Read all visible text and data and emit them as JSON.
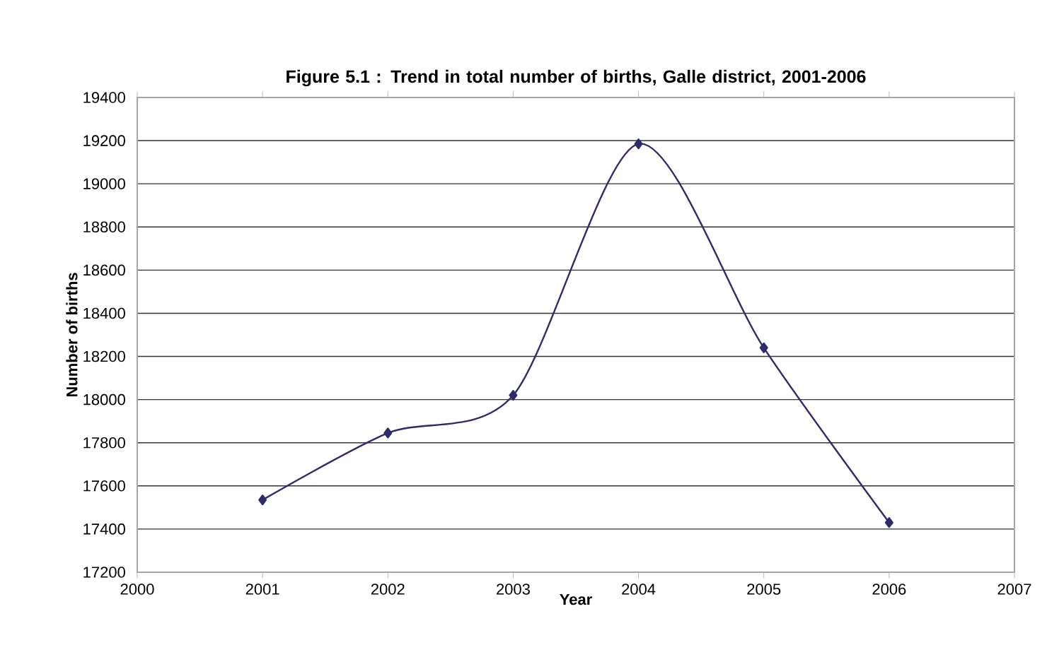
{
  "chart_data": {
    "type": "line",
    "title": "Figure  5.1 : Trend in total number of births, Galle district, 2001-2006",
    "xlabel": "Year",
    "ylabel": "Number of births",
    "x": [
      2001,
      2002,
      2003,
      2004,
      2005,
      2006
    ],
    "series": [
      {
        "color": "#2e2a6b",
        "values": [
          17535,
          17845,
          18020,
          19185,
          18240,
          17430
        ]
      }
    ],
    "xlim": [
      2000,
      2007
    ],
    "xticks": [
      2000,
      2001,
      2002,
      2003,
      2004,
      2005,
      2006,
      2007
    ],
    "ylim": [
      17200,
      19400
    ],
    "yticks": [
      17200,
      17400,
      17600,
      17800,
      18000,
      18200,
      18400,
      18600,
      18800,
      19000,
      19200,
      19400
    ],
    "grid": "y",
    "marker": "diamond",
    "line_style": "solid"
  }
}
